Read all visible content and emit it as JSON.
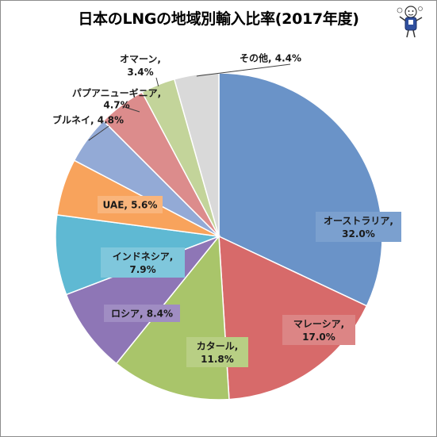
{
  "chart_data": {
    "type": "pie",
    "title": "日本のLNGの地域別輸入比率(2017年度)",
    "start_angle_deg": 0,
    "direction": "clockwise",
    "slices": [
      {
        "name": "オーストラリア",
        "value": 32.0,
        "line1": "オーストラリア,",
        "line2": "32.0%",
        "color": "#6a93c8",
        "label_bg": "#7ba0cf"
      },
      {
        "name": "マレーシア",
        "value": 17.0,
        "line1": "マレーシア,",
        "line2": "17.0%",
        "color": "#d76a6a",
        "label_bg": "#dc8585"
      },
      {
        "name": "カタール",
        "value": 11.8,
        "line1": "カタール,",
        "line2": "11.8%",
        "color": "#a9c56a",
        "label_bg": "#b8cf84"
      },
      {
        "name": "ロシア",
        "value": 8.4,
        "line1": "ロシア, 8.4%",
        "line2": "",
        "color": "#8e76b6",
        "label_bg": "#a08dc3"
      },
      {
        "name": "インドネシア",
        "value": 7.9,
        "line1": "インドネシア,",
        "line2": "7.9%",
        "color": "#5fb9d3",
        "label_bg": "#7fc7dc"
      },
      {
        "name": "UAE",
        "value": 5.6,
        "line1": "UAE, 5.6%",
        "line2": "",
        "color": "#f8a35c",
        "label_bg": "#f9b57c"
      },
      {
        "name": "ブルネイ",
        "value": 4.8,
        "line1": "ブルネイ, 4.8%",
        "line2": "",
        "color": "#93aad6",
        "label_bg": "#ffffff"
      },
      {
        "name": "パプアニューギニア",
        "value": 4.7,
        "line1": "パプアニューギニア,",
        "line2": "4.7%",
        "color": "#dc8c8c",
        "label_bg": "#ffffff"
      },
      {
        "name": "オマーン",
        "value": 3.4,
        "line1": "オマーン,",
        "line2": "3.4%",
        "color": "#c3d49a",
        "label_bg": "#ffffff"
      },
      {
        "name": "その他",
        "value": 4.4,
        "line1": "その他, 4.4%",
        "line2": "",
        "color": "#d9d9d9",
        "label_bg": "#ffffff"
      }
    ]
  }
}
